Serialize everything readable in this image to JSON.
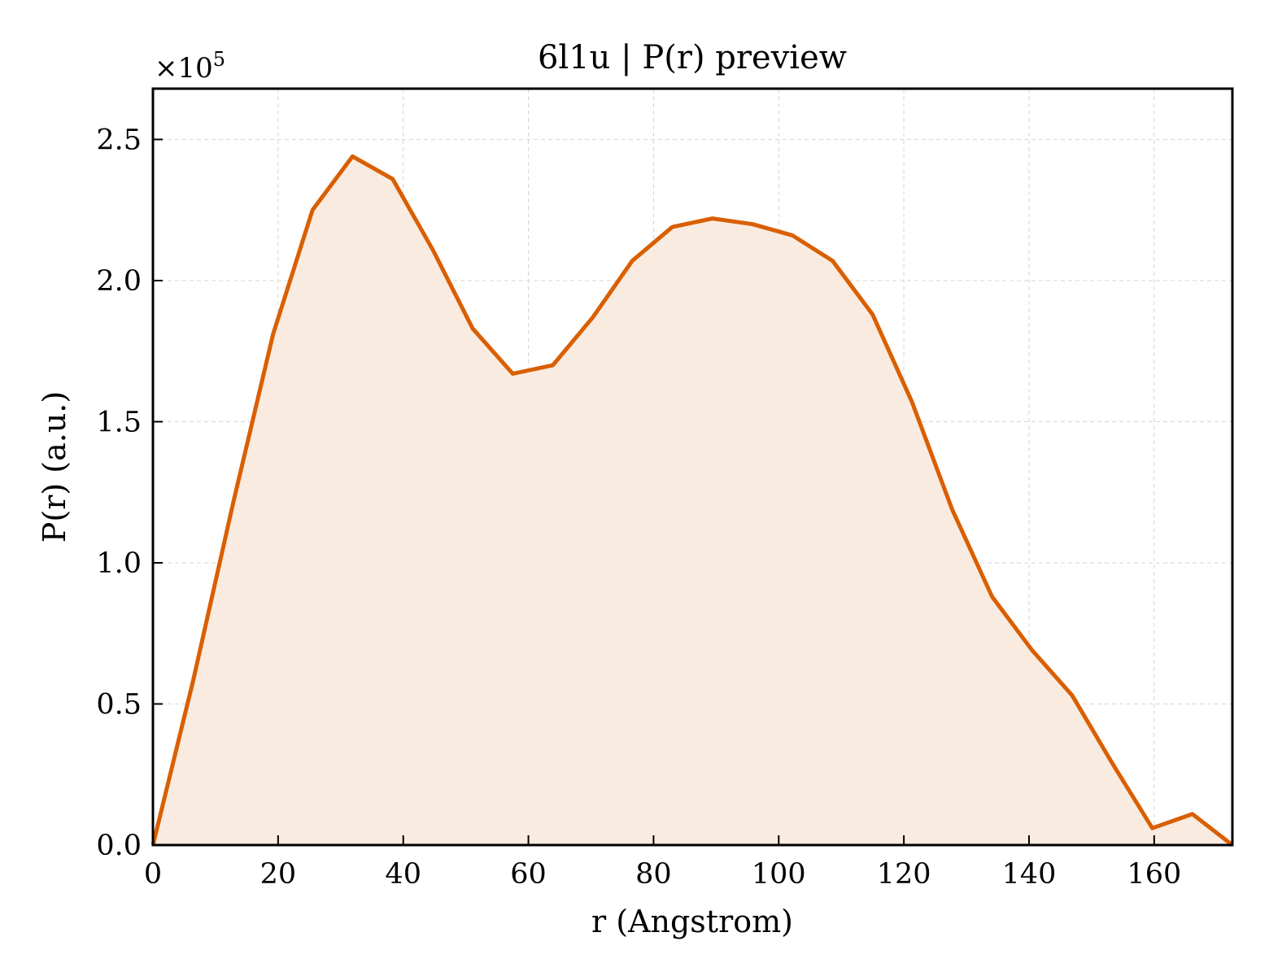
{
  "chart_data": {
    "type": "area",
    "title": "6l1u | P(r) preview",
    "xlabel": "r (Angstrom)",
    "ylabel": "P(r) (a.u.)",
    "y_scale_exponent": "×10",
    "y_scale_exponent_power": "5",
    "y_multiplier": 100000,
    "xlim": [
      0,
      172.5
    ],
    "ylim": [
      0,
      2.68
    ],
    "x_ticks": [
      0,
      20,
      40,
      60,
      80,
      100,
      120,
      140,
      160
    ],
    "x_tick_labels": [
      "0",
      "20",
      "40",
      "60",
      "80",
      "100",
      "120",
      "140",
      "160"
    ],
    "y_ticks": [
      0,
      0.5,
      1.0,
      1.5,
      2.0,
      2.5
    ],
    "y_tick_labels": [
      "0.0",
      "0.5",
      "1.0",
      "1.5",
      "2.0",
      "2.5"
    ],
    "grid": true,
    "line_color": "#d95f02",
    "fill_color": "#f9ebe0",
    "series": [
      {
        "x": [
          0,
          6.4,
          12.8,
          19.2,
          25.5,
          31.9,
          38.3,
          44.7,
          51.1,
          57.5,
          63.9,
          70.3,
          76.6,
          83.0,
          89.4,
          95.8,
          102.2,
          108.6,
          115.0,
          121.3,
          127.7,
          134.1,
          140.5,
          146.9,
          153.3,
          159.7,
          166.1,
          172.5
        ],
        "y": [
          0.0,
          0.58,
          1.21,
          1.81,
          2.25,
          2.44,
          2.36,
          2.11,
          1.83,
          1.67,
          1.7,
          1.87,
          2.07,
          2.19,
          2.22,
          2.2,
          2.16,
          2.07,
          1.88,
          1.57,
          1.19,
          0.88,
          0.69,
          0.53,
          0.29,
          0.06,
          0.11,
          0.0
        ]
      }
    ]
  }
}
